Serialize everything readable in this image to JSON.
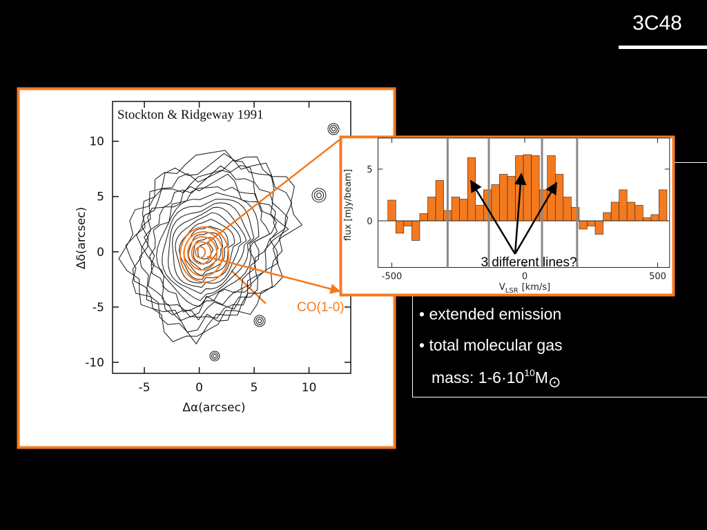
{
  "header": {
    "title": "3C48"
  },
  "contour_map": {
    "credit": "Stockton & Ridgeway 1991",
    "x_label": "Δα(arcsec)",
    "y_label": "Δδ(arcsec)",
    "xlim": [
      -7.9,
      13.8
    ],
    "ylim": [
      -11,
      13.6
    ],
    "xticks": [
      -5,
      0,
      5,
      10
    ],
    "yticks": [
      10,
      5,
      0,
      -5,
      -10
    ],
    "annotation": "CO(1-0)"
  },
  "spectrum": {
    "type": "histogram",
    "y_label": "flux [mJy/beam]",
    "x_label_main": "V",
    "x_label_sub": "LSR",
    "x_label_unit": "[km/s]",
    "xlim": [
      -552,
      545
    ],
    "ylim": [
      -4.5,
      8
    ],
    "xticks": [
      -500,
      0,
      500
    ],
    "yticks": [
      5,
      0
    ],
    "color": "#f47a1f",
    "bins": [
      -515,
      -485,
      -455,
      -425,
      -395,
      -365,
      -335,
      -305,
      -275,
      -245,
      -215,
      -185,
      -155,
      -125,
      -95,
      -65,
      -35,
      -5,
      25,
      55,
      85,
      115,
      145,
      175,
      205,
      235,
      265,
      295,
      325,
      355,
      385,
      415,
      445,
      475,
      505,
      535
    ],
    "values": [
      2.0,
      -1.2,
      -0.5,
      -1.9,
      0.7,
      2.3,
      3.9,
      1.0,
      2.3,
      2.1,
      6.1,
      1.5,
      3.0,
      3.5,
      4.5,
      4.3,
      6.3,
      6.4,
      6.3,
      3.0,
      6.3,
      4.5,
      2.3,
      1.3,
      -0.8,
      -0.5,
      -1.3,
      0.8,
      1.8,
      3.0,
      1.8,
      1.5,
      0.3,
      0.6,
      3.0
    ],
    "marker_lines": [
      -290,
      -135,
      65,
      197
    ],
    "annotation": "3 different lines?"
  },
  "bullets": [
    "• extended emission",
    "• total molecular gas"
  ],
  "mass_line": {
    "text": "mass: 1-6·10",
    "exponent": "10",
    "unit": "M",
    "symbol": "⊙"
  }
}
